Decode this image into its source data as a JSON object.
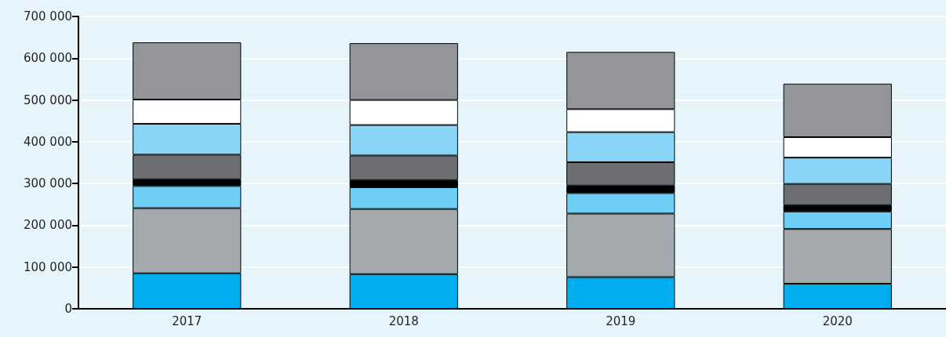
{
  "chart_data": {
    "type": "bar",
    "stacked": true,
    "categories": [
      "2017",
      "2018",
      "2019",
      "2020"
    ],
    "series": [
      {
        "color": "#00aeef",
        "values": [
          85000,
          83000,
          76000,
          60000
        ]
      },
      {
        "color": "#a3a9ad",
        "values": [
          156000,
          156000,
          152000,
          131000
        ]
      },
      {
        "color": "#6dcff6",
        "values": [
          53000,
          52000,
          49000,
          42000
        ]
      },
      {
        "color": "#000000",
        "values": [
          16000,
          17000,
          18000,
          15000
        ]
      },
      {
        "color": "#6d6e71",
        "values": [
          59000,
          59000,
          56000,
          51000
        ]
      },
      {
        "color": "#8ad5f5",
        "values": [
          74000,
          73000,
          72000,
          63000
        ]
      },
      {
        "color": "#ffffff",
        "values": [
          58000,
          60000,
          55000,
          49000
        ]
      },
      {
        "color": "#939598",
        "values": [
          137000,
          136000,
          137000,
          128000
        ]
      }
    ],
    "ylim": [
      0,
      700000
    ],
    "yticks": [
      0,
      100000,
      200000,
      300000,
      400000,
      500000,
      600000,
      700000
    ],
    "grid": "y"
  }
}
